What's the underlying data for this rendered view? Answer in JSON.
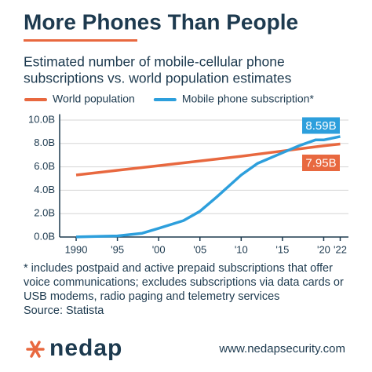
{
  "chart_data": {
    "type": "line",
    "title": "More Phones Than People",
    "subtitle": [
      "Estimated number of mobile-cellular phone",
      "subscriptions vs. world population estimates"
    ],
    "series": [
      {
        "name": "World population",
        "color": "#e8683f",
        "x": [
          1990,
          1995,
          2000,
          2005,
          2010,
          2015,
          2020,
          2022
        ],
        "values": [
          5.3,
          5.7,
          6.1,
          6.5,
          6.9,
          7.35,
          7.8,
          7.95
        ],
        "value_labels": [
          null,
          null,
          null,
          null,
          null,
          null,
          null,
          "7.95B"
        ]
      },
      {
        "name": "Mobile phone subscription*",
        "color": "#2d9fdc",
        "x": [
          1990,
          1995,
          1998,
          2000,
          2003,
          2005,
          2007,
          2010,
          2012,
          2015,
          2017,
          2019,
          2020,
          2022
        ],
        "values": [
          0.01,
          0.09,
          0.32,
          0.74,
          1.4,
          2.2,
          3.4,
          5.3,
          6.3,
          7.2,
          7.8,
          8.3,
          8.3,
          8.59
        ],
        "value_labels": [
          null,
          null,
          null,
          null,
          null,
          null,
          null,
          null,
          null,
          null,
          null,
          null,
          null,
          "8.59B"
        ]
      }
    ],
    "xlim": [
      1988,
      2023
    ],
    "xticks": [
      1990,
      {
        "value": 1995,
        "label": "'95"
      },
      {
        "value": 2000,
        "label": "'00"
      },
      {
        "value": 2005,
        "label": "'05"
      },
      {
        "value": 2010,
        "label": "'10"
      },
      {
        "value": 2015,
        "label": "'15"
      },
      {
        "value": 2020,
        "label": "'20"
      },
      {
        "value": 2022,
        "label": "'22"
      }
    ],
    "ylim": [
      0,
      10.5
    ],
    "yticks": [
      {
        "value": 0,
        "label": "0.0B"
      },
      {
        "value": 2,
        "label": "2.0B"
      },
      {
        "value": 4,
        "label": "4.0B"
      },
      {
        "value": 6,
        "label": "6.0B"
      },
      {
        "value": 8,
        "label": "8.0B"
      },
      {
        "value": 10,
        "label": "10.0B"
      }
    ],
    "grid": true,
    "legend": "top",
    "footnote": "* includes postpaid and active prepaid subscriptions that offer voice communications; excludes subscriptions via data cards or USB modems, radio paging and telemetry services",
    "source": "Source: Statista"
  },
  "footer": {
    "logo": "nedap",
    "url": "www.nedapsecurity.com"
  }
}
